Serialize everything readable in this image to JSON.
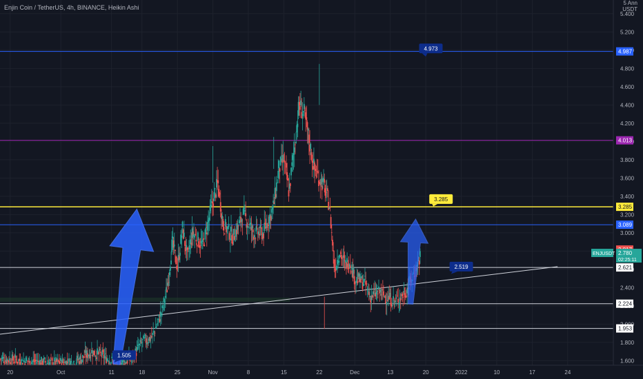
{
  "header": {
    "title": "Enjin Coin / TetherUS, 4h, BINANCE, Heikin Ashi",
    "unit_line1": "5 Ann",
    "unit_line2": "USDT"
  },
  "colors": {
    "background": "#131722",
    "bull": "#26a69a",
    "bear": "#ef5350",
    "blue_line": "#2962ff",
    "purple_line": "#9c27b0",
    "yellow_line": "#ffeb3b",
    "white_line": "#d1d4dc",
    "arrow_blue": "#2962ff",
    "label_navy": "#0d2d8c"
  },
  "chart_data": {
    "type": "candlestick",
    "title": "Enjin Coin / TetherUS, 4h, BINANCE, Heikin Ashi",
    "ylim": [
      1.55,
      5.55
    ],
    "y_ticks": [
      "1.600",
      "1.800",
      "2.000",
      "2.200",
      "2.400",
      "2.600",
      "2.800",
      "3.000",
      "3.200",
      "3.400",
      "3.600",
      "3.800",
      "4.000",
      "4.200",
      "4.400",
      "4.600",
      "4.800",
      "5.000",
      "5.200",
      "5.400"
    ],
    "x_ticks": [
      "20",
      "Oct",
      "11",
      "18",
      "25",
      "Nov",
      "8",
      "15",
      "22",
      "Dec",
      "13",
      "20",
      "2022",
      "10",
      "17",
      "24"
    ],
    "close_path": [
      [
        0,
        1.62
      ],
      [
        9,
        1.58
      ],
      [
        14,
        1.58
      ],
      [
        16,
        1.62
      ],
      [
        18,
        1.7
      ],
      [
        20,
        1.66
      ],
      [
        22,
        1.6
      ],
      [
        24,
        1.58
      ],
      [
        26,
        1.62
      ],
      [
        28,
        1.8
      ],
      [
        30,
        1.86
      ],
      [
        32,
        2.15
      ],
      [
        33,
        2.4
      ],
      [
        34,
        2.9
      ],
      [
        35,
        2.62
      ],
      [
        36,
        3.05
      ],
      [
        37,
        2.72
      ],
      [
        38,
        3.0
      ],
      [
        40,
        2.85
      ],
      [
        42,
        3.35
      ],
      [
        43,
        3.55
      ],
      [
        44,
        3.1
      ],
      [
        46,
        2.95
      ],
      [
        48,
        3.2
      ],
      [
        50,
        3.0
      ],
      [
        52,
        3.0
      ],
      [
        54,
        3.3
      ],
      [
        55,
        3.7
      ],
      [
        56,
        3.8
      ],
      [
        57,
        3.45
      ],
      [
        58,
        3.9
      ],
      [
        59,
        4.4
      ],
      [
        60,
        4.3
      ],
      [
        61,
        4.0
      ],
      [
        62,
        3.7
      ],
      [
        63,
        3.6
      ],
      [
        64,
        3.5
      ],
      [
        65,
        3.3
      ],
      [
        66,
        2.6
      ],
      [
        67,
        2.8
      ],
      [
        68,
        2.65
      ],
      [
        69,
        2.7
      ],
      [
        70,
        2.5
      ],
      [
        72,
        2.45
      ],
      [
        73,
        2.3
      ],
      [
        75,
        2.35
      ],
      [
        76,
        2.3
      ],
      [
        78,
        2.25
      ],
      [
        79,
        2.3
      ],
      [
        80,
        2.35
      ],
      [
        82,
        2.6
      ],
      [
        83,
        2.76
      ]
    ],
    "last_price": "2.780",
    "horizontal_levels": [
      {
        "label": "4.987",
        "value": 4.987,
        "color": "#2962ff"
      },
      {
        "label": "4.013",
        "value": 4.013,
        "color": "#9c27b0"
      },
      {
        "label": "3.285",
        "value": 3.285,
        "color": "#ffeb3b"
      },
      {
        "label": "3.089",
        "value": 3.089,
        "color": "#2962ff"
      },
      {
        "label": "2.621",
        "value": 2.621,
        "color": "#d1d4dc"
      },
      {
        "label": "2.224",
        "value": 2.224,
        "color": "#d1d4dc"
      },
      {
        "label": "1.953",
        "value": 1.953,
        "color": "#d1d4dc"
      }
    ],
    "price_labels": [
      {
        "label": "2.817",
        "value": 2.817,
        "color": "#ef5350"
      }
    ],
    "trendline": {
      "from": [
        0,
        1.89
      ],
      "to": [
        110,
        2.63
      ]
    },
    "callouts": [
      {
        "label": "4.973",
        "color": "#0d2d8c",
        "at": [
          85,
          5.02
        ],
        "tip": [
          84,
          4.93
        ]
      },
      {
        "label": "3.285",
        "color": "#ffeb3b",
        "at": [
          87,
          3.37
        ],
        "tip": [
          85.5,
          3.29
        ]
      },
      {
        "label": "2.519",
        "color": "#0d2d8c",
        "at": [
          91,
          2.63
        ],
        "tip": [
          89,
          2.55
        ]
      },
      {
        "label": "1.505",
        "color": "#0d2d8c",
        "at": [
          24.5,
          1.66
        ],
        "tip": [
          22.5,
          1.58
        ]
      }
    ],
    "arrows": [
      {
        "name": "left-blue-up-arrow",
        "from": [
          23,
          1.56
        ],
        "to": [
          27,
          3.26
        ]
      },
      {
        "name": "right-blue-up-arrow",
        "from": [
          81,
          2.22
        ],
        "to": [
          82,
          3.15
        ]
      }
    ],
    "ticker_tag": {
      "symbol": "ENJUSDT",
      "price": "2.780",
      "countdown": "02:25:11"
    }
  }
}
